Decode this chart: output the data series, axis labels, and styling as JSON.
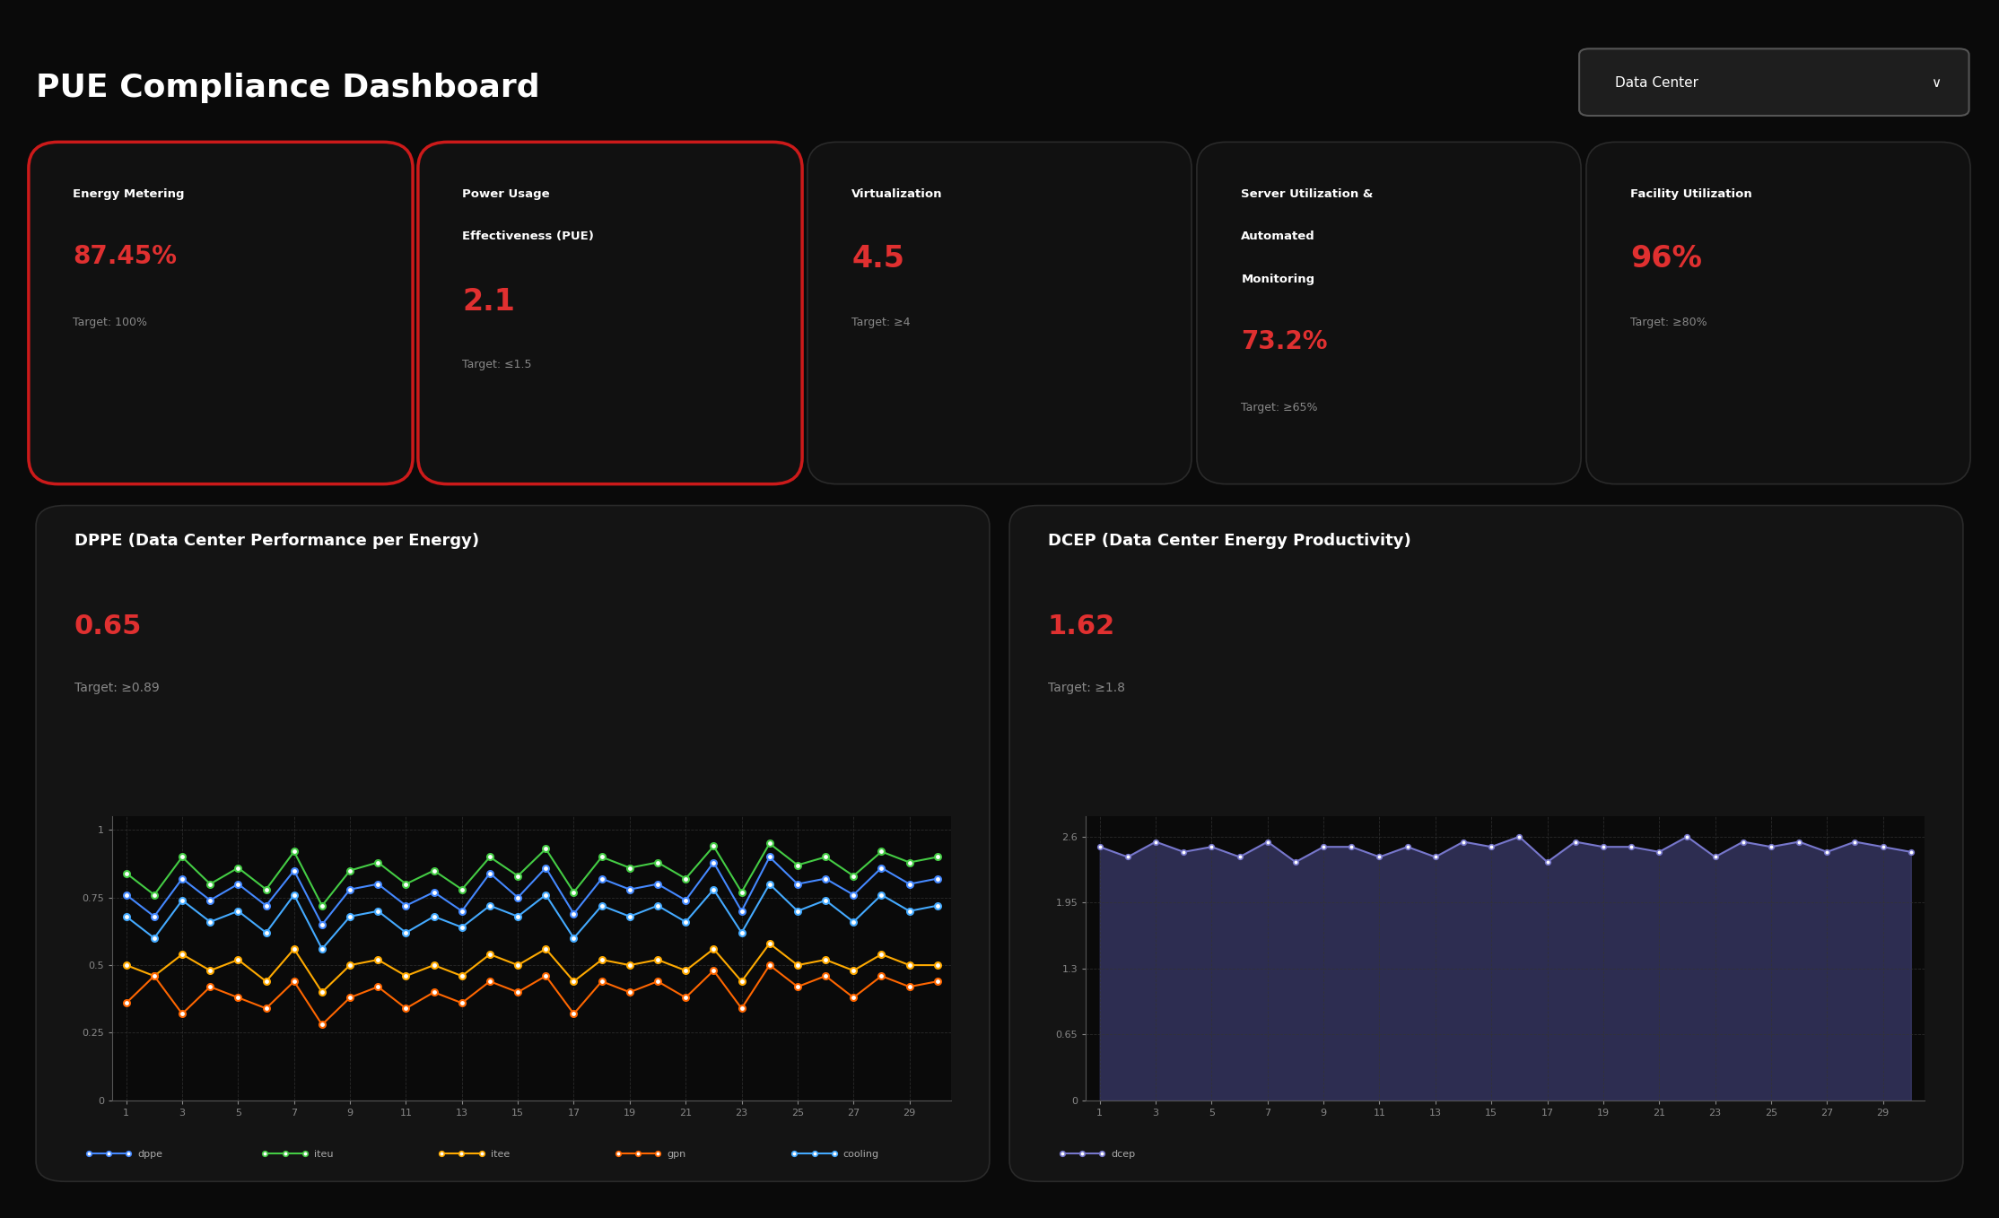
{
  "bg_color": "#0a0a0a",
  "card_bg": "#111111",
  "chart_bg": "#141414",
  "red_border": "#cc1a1a",
  "red_text": "#e03030",
  "white_text": "#ffffff",
  "gray_text": "#888888",
  "dark_gray_border": "#2a2a2a",
  "title": "PUE Compliance Dashboard",
  "dropdown_label": "Data Center",
  "metrics": [
    {
      "label": "Energy Metering",
      "value": "87.45%",
      "target": "Target: 100%",
      "red_border": true,
      "label_lines": 1
    },
    {
      "label": "Power Usage\nEffectiveness (PUE)",
      "value": "2.1",
      "target": "Target: ≤1.5",
      "red_border": true,
      "label_lines": 2
    },
    {
      "label": "Virtualization",
      "value": "4.5",
      "target": "Target: ≥4",
      "red_border": false,
      "label_lines": 1
    },
    {
      "label": "Server Utilization &\nAutomated\nMonitoring",
      "value": "73.2%",
      "target": "Target: ≥65%",
      "red_border": false,
      "label_lines": 3
    },
    {
      "label": "Facility Utilization",
      "value": "96%",
      "target": "Target: ≥80%",
      "red_border": false,
      "label_lines": 1
    }
  ],
  "dppe_title": "DPPE (Data Center Performance per Energy)",
  "dppe_value": "0.65",
  "dppe_target": "Target: ≥0.89",
  "dcep_title": "DCEP (Data Center Energy Productivity)",
  "dcep_value": "1.62",
  "dcep_target": "Target: ≥1.8",
  "x_vals": [
    1,
    2,
    3,
    4,
    5,
    6,
    7,
    8,
    9,
    10,
    11,
    12,
    13,
    14,
    15,
    16,
    17,
    18,
    19,
    20,
    21,
    22,
    23,
    24,
    25,
    26,
    27,
    28,
    29,
    30
  ],
  "dppe_line": [
    0.76,
    0.68,
    0.82,
    0.74,
    0.8,
    0.72,
    0.85,
    0.65,
    0.78,
    0.8,
    0.72,
    0.77,
    0.7,
    0.84,
    0.75,
    0.86,
    0.69,
    0.82,
    0.78,
    0.8,
    0.74,
    0.88,
    0.7,
    0.9,
    0.8,
    0.82,
    0.76,
    0.86,
    0.8,
    0.82
  ],
  "iteu_line": [
    0.84,
    0.76,
    0.9,
    0.8,
    0.86,
    0.78,
    0.92,
    0.72,
    0.85,
    0.88,
    0.8,
    0.85,
    0.78,
    0.9,
    0.83,
    0.93,
    0.77,
    0.9,
    0.86,
    0.88,
    0.82,
    0.94,
    0.77,
    0.95,
    0.87,
    0.9,
    0.83,
    0.92,
    0.88,
    0.9
  ],
  "itee_line": [
    0.5,
    0.46,
    0.54,
    0.48,
    0.52,
    0.44,
    0.56,
    0.4,
    0.5,
    0.52,
    0.46,
    0.5,
    0.46,
    0.54,
    0.5,
    0.56,
    0.44,
    0.52,
    0.5,
    0.52,
    0.48,
    0.56,
    0.44,
    0.58,
    0.5,
    0.52,
    0.48,
    0.54,
    0.5,
    0.5
  ],
  "gpn_line": [
    0.36,
    0.46,
    0.32,
    0.42,
    0.38,
    0.34,
    0.44,
    0.28,
    0.38,
    0.42,
    0.34,
    0.4,
    0.36,
    0.44,
    0.4,
    0.46,
    0.32,
    0.44,
    0.4,
    0.44,
    0.38,
    0.48,
    0.34,
    0.5,
    0.42,
    0.46,
    0.38,
    0.46,
    0.42,
    0.44
  ],
  "cooling_line": [
    0.68,
    0.6,
    0.74,
    0.66,
    0.7,
    0.62,
    0.76,
    0.56,
    0.68,
    0.7,
    0.62,
    0.68,
    0.64,
    0.72,
    0.68,
    0.76,
    0.6,
    0.72,
    0.68,
    0.72,
    0.66,
    0.78,
    0.62,
    0.8,
    0.7,
    0.74,
    0.66,
    0.76,
    0.7,
    0.72
  ],
  "dcep_area": [
    2.5,
    2.4,
    2.55,
    2.45,
    2.5,
    2.4,
    2.55,
    2.35,
    2.5,
    2.5,
    2.4,
    2.5,
    2.4,
    2.55,
    2.5,
    2.6,
    2.35,
    2.55,
    2.5,
    2.5,
    2.45,
    2.6,
    2.4,
    2.55,
    2.5,
    2.55,
    2.45,
    2.55,
    2.5,
    2.45
  ],
  "dppe_color": "#4488ff",
  "iteu_color": "#44cc44",
  "itee_color": "#ffaa00",
  "gpn_color": "#ff6600",
  "cooling_color": "#44aaff",
  "dcep_line_color": "#7777cc",
  "dcep_fill_color": "#3a3a6a"
}
